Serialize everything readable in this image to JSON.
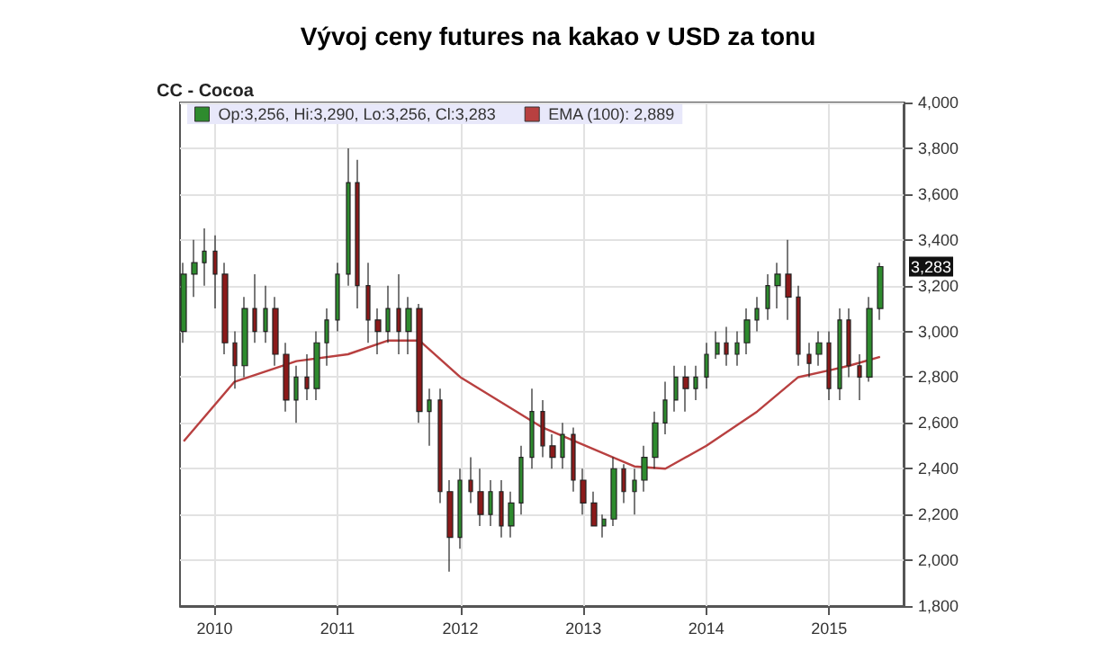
{
  "chart_data": {
    "type": "candlestick",
    "title": "Vývoj ceny futures na kakao v USD za tonu",
    "subtitle": "CC - Cocoa",
    "x": [
      "2009-10",
      "2009-11",
      "2009-12",
      "2010-01",
      "2010-02",
      "2010-03",
      "2010-04",
      "2010-05",
      "2010-06",
      "2010-07",
      "2010-08",
      "2010-09",
      "2010-10",
      "2010-11",
      "2010-12",
      "2011-01",
      "2011-02",
      "2011-03",
      "2011-04",
      "2011-05",
      "2011-06",
      "2011-07",
      "2011-08",
      "2011-09",
      "2011-10",
      "2011-11",
      "2011-12",
      "2012-01",
      "2012-02",
      "2012-03",
      "2012-04",
      "2012-05",
      "2012-06",
      "2012-07",
      "2012-08",
      "2012-09",
      "2012-10",
      "2012-11",
      "2012-12",
      "2013-01",
      "2013-02",
      "2013-03",
      "2013-04",
      "2013-05",
      "2013-06",
      "2013-07",
      "2013-08",
      "2013-09",
      "2013-10",
      "2013-11",
      "2013-12",
      "2014-01",
      "2014-02",
      "2014-03",
      "2014-04",
      "2014-05",
      "2014-06",
      "2014-07",
      "2014-08",
      "2014-09",
      "2014-10",
      "2014-11",
      "2014-12",
      "2015-01",
      "2015-02",
      "2015-03",
      "2015-04",
      "2015-05",
      "2015-06"
    ],
    "series": [
      {
        "name": "Op:3,256, Hi:3,290, Lo:3,256, Cl:3,283",
        "color": "#2e8b2e",
        "colors": [
          "#2e8b2e",
          "#2e8b2e",
          "#2e8b2e",
          "#8b1a1a",
          "#8b1a1a",
          "#8b1a1a",
          "#2e8b2e",
          "#8b1a1a",
          "#2e8b2e",
          "#8b1a1a",
          "#8b1a1a",
          "#2e8b2e",
          "#8b1a1a",
          "#2e8b2e",
          "#2e8b2e",
          "#2e8b2e",
          "#2e8b2e",
          "#8b1a1a",
          "#8b1a1a",
          "#8b1a1a",
          "#2e8b2e",
          "#8b1a1a",
          "#2e8b2e",
          "#8b1a1a",
          "#2e8b2e",
          "#8b1a1a",
          "#8b1a1a",
          "#2e8b2e",
          "#8b1a1a",
          "#8b1a1a",
          "#2e8b2e",
          "#8b1a1a",
          "#2e8b2e",
          "#2e8b2e",
          "#2e8b2e",
          "#8b1a1a",
          "#8b1a1a",
          "#2e8b2e",
          "#8b1a1a",
          "#8b1a1a",
          "#8b1a1a",
          "#2e8b2e",
          "#2e8b2e",
          "#8b1a1a",
          "#2e8b2e",
          "#2e8b2e",
          "#2e8b2e",
          "#2e8b2e",
          "#2e8b2e",
          "#8b1a1a",
          "#2e8b2e",
          "#2e8b2e",
          "#2e8b2e",
          "#8b1a1a",
          "#2e8b2e",
          "#2e8b2e",
          "#2e8b2e",
          "#2e8b2e",
          "#2e8b2e",
          "#8b1a1a",
          "#8b1a1a",
          "#8b1a1a",
          "#2e8b2e",
          "#8b1a1a",
          "#2e8b2e",
          "#8b1a1a",
          "#8b1a1a",
          "#2e8b2e",
          "#2e8b2e"
        ],
        "ohlc": [
          [
            3000,
            3300,
            2950,
            3250
          ],
          [
            3250,
            3400,
            3150,
            3300
          ],
          [
            3300,
            3450,
            3200,
            3350
          ],
          [
            3350,
            3420,
            3100,
            3250
          ],
          [
            3250,
            3300,
            2900,
            2950
          ],
          [
            2950,
            3000,
            2750,
            2850
          ],
          [
            2850,
            3150,
            2800,
            3100
          ],
          [
            3100,
            3250,
            2950,
            3000
          ],
          [
            3000,
            3200,
            2950,
            3100
          ],
          [
            3100,
            3150,
            2850,
            2900
          ],
          [
            2900,
            2950,
            2650,
            2700
          ],
          [
            2700,
            2850,
            2600,
            2800
          ],
          [
            2800,
            2900,
            2700,
            2750
          ],
          [
            2750,
            3000,
            2700,
            2950
          ],
          [
            2950,
            3100,
            2850,
            3050
          ],
          [
            3050,
            3300,
            3000,
            3250
          ],
          [
            3250,
            3800,
            3200,
            3650
          ],
          [
            3650,
            3750,
            3100,
            3200
          ],
          [
            3200,
            3300,
            2950,
            3050
          ],
          [
            3050,
            3100,
            2900,
            3000
          ],
          [
            3000,
            3200,
            2950,
            3100
          ],
          [
            3100,
            3250,
            2900,
            3000
          ],
          [
            3000,
            3150,
            2900,
            3100
          ],
          [
            3100,
            3120,
            2600,
            2650
          ],
          [
            2650,
            2750,
            2500,
            2700
          ],
          [
            2700,
            2750,
            2250,
            2300
          ],
          [
            2300,
            2350,
            1950,
            2100
          ],
          [
            2100,
            2400,
            2050,
            2350
          ],
          [
            2350,
            2450,
            2250,
            2300
          ],
          [
            2300,
            2400,
            2150,
            2200
          ],
          [
            2200,
            2350,
            2150,
            2300
          ],
          [
            2300,
            2350,
            2100,
            2150
          ],
          [
            2150,
            2300,
            2100,
            2250
          ],
          [
            2250,
            2500,
            2200,
            2450
          ],
          [
            2450,
            2750,
            2400,
            2650
          ],
          [
            2650,
            2700,
            2450,
            2500
          ],
          [
            2500,
            2550,
            2400,
            2450
          ],
          [
            2450,
            2600,
            2400,
            2550
          ],
          [
            2550,
            2580,
            2300,
            2350
          ],
          [
            2350,
            2400,
            2200,
            2250
          ],
          [
            2250,
            2300,
            2150,
            2150
          ],
          [
            2150,
            2200,
            2100,
            2180
          ],
          [
            2180,
            2450,
            2150,
            2400
          ],
          [
            2400,
            2420,
            2250,
            2300
          ],
          [
            2300,
            2400,
            2200,
            2350
          ],
          [
            2350,
            2500,
            2300,
            2450
          ],
          [
            2450,
            2650,
            2400,
            2600
          ],
          [
            2600,
            2780,
            2550,
            2700
          ],
          [
            2700,
            2850,
            2650,
            2800
          ],
          [
            2800,
            2850,
            2650,
            2750
          ],
          [
            2750,
            2850,
            2700,
            2800
          ],
          [
            2800,
            2950,
            2750,
            2900
          ],
          [
            2900,
            3000,
            2880,
            2950
          ],
          [
            2950,
            3020,
            2850,
            2900
          ],
          [
            2900,
            3000,
            2850,
            2950
          ],
          [
            2950,
            3100,
            2900,
            3050
          ],
          [
            3050,
            3150,
            3000,
            3100
          ],
          [
            3100,
            3250,
            3050,
            3200
          ],
          [
            3200,
            3300,
            3100,
            3250
          ],
          [
            3250,
            3400,
            3050,
            3150
          ],
          [
            3150,
            3200,
            2850,
            2900
          ],
          [
            2900,
            2950,
            2800,
            2860
          ],
          [
            2900,
            3000,
            2850,
            2950
          ],
          [
            2950,
            3000,
            2700,
            2750
          ],
          [
            2750,
            3100,
            2700,
            3050
          ],
          [
            3050,
            3100,
            2800,
            2850
          ],
          [
            2850,
            2900,
            2700,
            2800
          ],
          [
            2800,
            3150,
            2780,
            3100
          ],
          [
            3100,
            3300,
            3050,
            3283
          ]
        ]
      },
      {
        "type": "line",
        "name": "EMA (100): 2,889",
        "color": "#b84040",
        "x": [
          "2009-10",
          "2010-03",
          "2010-09",
          "2011-02",
          "2011-06",
          "2011-09",
          "2012-01",
          "2012-09",
          "2013-06",
          "2013-09",
          "2014-01",
          "2014-06",
          "2014-10",
          "2015-01",
          "2015-03",
          "2015-06"
        ],
        "values": [
          2520,
          2780,
          2870,
          2900,
          2960,
          2960,
          2800,
          2580,
          2410,
          2400,
          2500,
          2650,
          2800,
          2830,
          2850,
          2889
        ]
      }
    ],
    "xlim": [
      "2009-09-20",
      "2015-08-10"
    ],
    "xticks": [
      "2010",
      "2011",
      "2012",
      "2013",
      "2014",
      "2015"
    ],
    "ylim": [
      1800,
      4000
    ],
    "yticks": [
      {
        "value": 1800,
        "label": "1,800"
      },
      {
        "value": 2000,
        "label": "2,000"
      },
      {
        "value": 2200,
        "label": "2,200"
      },
      {
        "value": 2400,
        "label": "2,400"
      },
      {
        "value": 2600,
        "label": "2,600"
      },
      {
        "value": 2800,
        "label": "2,800"
      },
      {
        "value": 3000,
        "label": "3,000"
      },
      {
        "value": 3200,
        "label": "3,200"
      },
      {
        "value": 3400,
        "label": "3,400"
      },
      {
        "value": 3600,
        "label": "3,600"
      },
      {
        "value": 3800,
        "label": "3,800"
      },
      {
        "value": 4000,
        "label": "4,000"
      }
    ],
    "annotations": [
      {
        "text": "3,283",
        "x": "2015-06",
        "y": 3283
      }
    ],
    "grid": true,
    "legend": "top left",
    "marker": "none",
    "line_style": "solid"
  }
}
